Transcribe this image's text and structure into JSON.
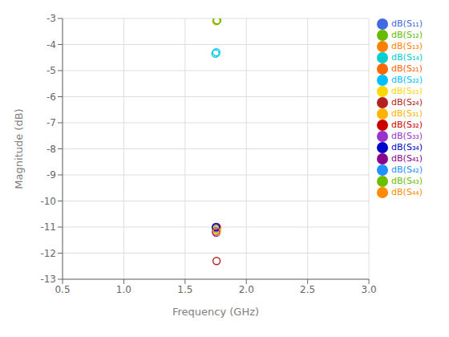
{
  "chart_data": {
    "type": "scatter",
    "xlabel": "Frequency (GHz)",
    "ylabel": "Magnitude (dB)",
    "xlim": [
      0.5,
      3.0
    ],
    "ylim": [
      -13,
      -3
    ],
    "xticks": [
      0.5,
      {
        "value": 1.0,
        "label": "1.0"
      },
      1.5,
      {
        "value": 2.0,
        "label": "2.0"
      },
      2.5,
      {
        "value": 3.0,
        "label": "3.0"
      }
    ],
    "yticks": [
      -13,
      -12,
      -11,
      -10,
      -9,
      -8,
      -7,
      -6,
      -5,
      -4,
      -3
    ],
    "grid": true,
    "legend": "upper right",
    "marker": "circle",
    "series": [
      {
        "name": "dB(S₁₁)",
        "color": "#4169E1",
        "x": [
          1.75
        ],
        "values": [
          -11.15
        ]
      },
      {
        "name": "dB(S₂₁)",
        "color": "#FF6600",
        "x": [
          1.76
        ],
        "values": [
          -11.05
        ]
      },
      {
        "name": "dB(S₃₁)",
        "color": "#FFB300",
        "x": [
          1.755
        ],
        "values": [
          -3.1
        ]
      },
      {
        "name": "dB(S₄₁)",
        "color": "#8B008B",
        "x": [
          1.755
        ],
        "values": [
          -11.2
        ]
      },
      {
        "name": "dB(S₁₂)",
        "color": "#66BB00",
        "x": [
          1.76
        ],
        "values": [
          -3.08
        ]
      },
      {
        "name": "dB(S₂₂)",
        "color": "#00BFFF",
        "x": [
          1.755
        ],
        "values": [
          -4.3
        ]
      },
      {
        "name": "dB(S₃₂)",
        "color": "#CC0000",
        "x": [
          1.758
        ],
        "values": [
          -11.0
        ]
      },
      {
        "name": "dB(S₄₂)",
        "color": "#1E90FF",
        "x": [
          1.752
        ],
        "values": [
          -11.05
        ]
      },
      {
        "name": "dB(S₁₃)",
        "color": "#FF7F00",
        "x": [
          1.757
        ],
        "values": [
          -11.08
        ]
      },
      {
        "name": "dB(S₂₃)",
        "color": "#FFD700",
        "x": [
          1.753
        ],
        "values": [
          -11.1
        ]
      },
      {
        "name": "dB(S₃₃)",
        "color": "#9932CC",
        "x": [
          1.754
        ],
        "values": [
          -11.22
        ]
      },
      {
        "name": "dB(S₄₃)",
        "color": "#6BBF00",
        "x": [
          1.762
        ],
        "values": [
          -3.07
        ]
      },
      {
        "name": "dB(S₁₄)",
        "color": "#00CED1",
        "x": [
          1.748
        ],
        "values": [
          -4.35
        ]
      },
      {
        "name": "dB(S₂₄)",
        "color": "#B22222",
        "x": [
          1.757
        ],
        "values": [
          -12.3
        ]
      },
      {
        "name": "dB(S₃₄)",
        "color": "#0000CD",
        "x": [
          1.751
        ],
        "values": [
          -11.0
        ]
      },
      {
        "name": "dB(S₄₄)",
        "color": "#FF8C00",
        "x": [
          1.759
        ],
        "values": [
          -11.18
        ]
      }
    ]
  }
}
